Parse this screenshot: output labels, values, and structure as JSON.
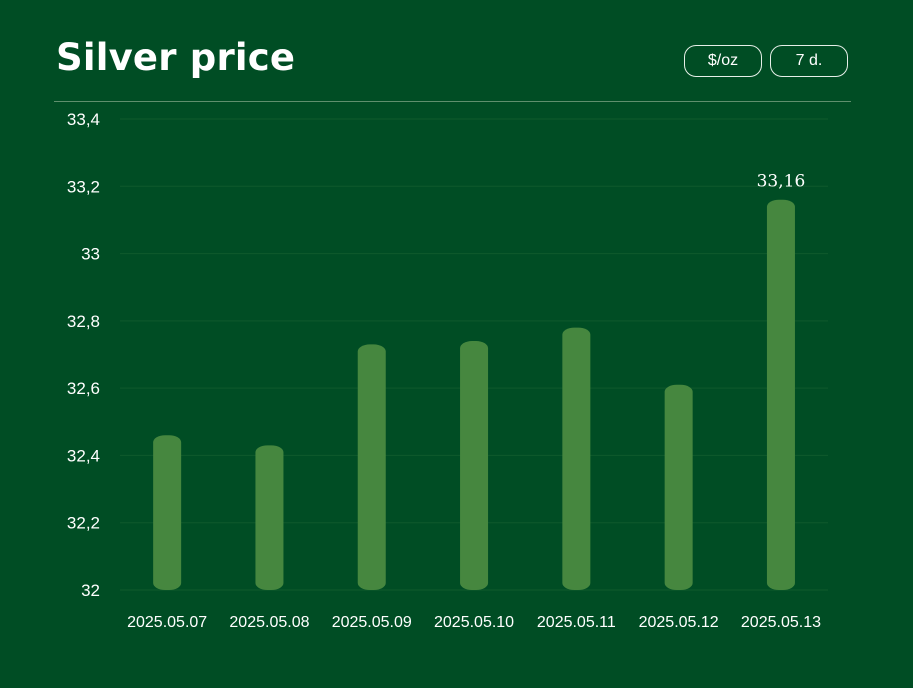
{
  "header": {
    "title": "Silver price",
    "unit_button": "$/oz",
    "range_button": "7 d."
  },
  "colors": {
    "background": "#004d24",
    "bar": "#46873f",
    "grid": "#0f5a2c",
    "text": "#ffffff"
  },
  "chart_data": {
    "type": "bar",
    "title": "Silver price",
    "categories": [
      "2025.05.07",
      "2025.05.08",
      "2025.05.09",
      "2025.05.10",
      "2025.05.11",
      "2025.05.12",
      "2025.05.13"
    ],
    "values": [
      32.46,
      32.43,
      32.73,
      32.74,
      32.78,
      32.61,
      33.16
    ],
    "ylim": [
      32,
      33.4
    ],
    "yticks": [
      32,
      32.2,
      32.4,
      32.6,
      32.8,
      33,
      33.2,
      33.4
    ],
    "ytick_labels": [
      "32",
      "32,2",
      "32,4",
      "32,6",
      "32,8",
      "33",
      "33,2",
      "33,4"
    ],
    "data_labels": [
      {
        "category": "2025.05.13",
        "text": "33,16"
      }
    ],
    "grid": true,
    "xlabel": "",
    "ylabel": ""
  }
}
